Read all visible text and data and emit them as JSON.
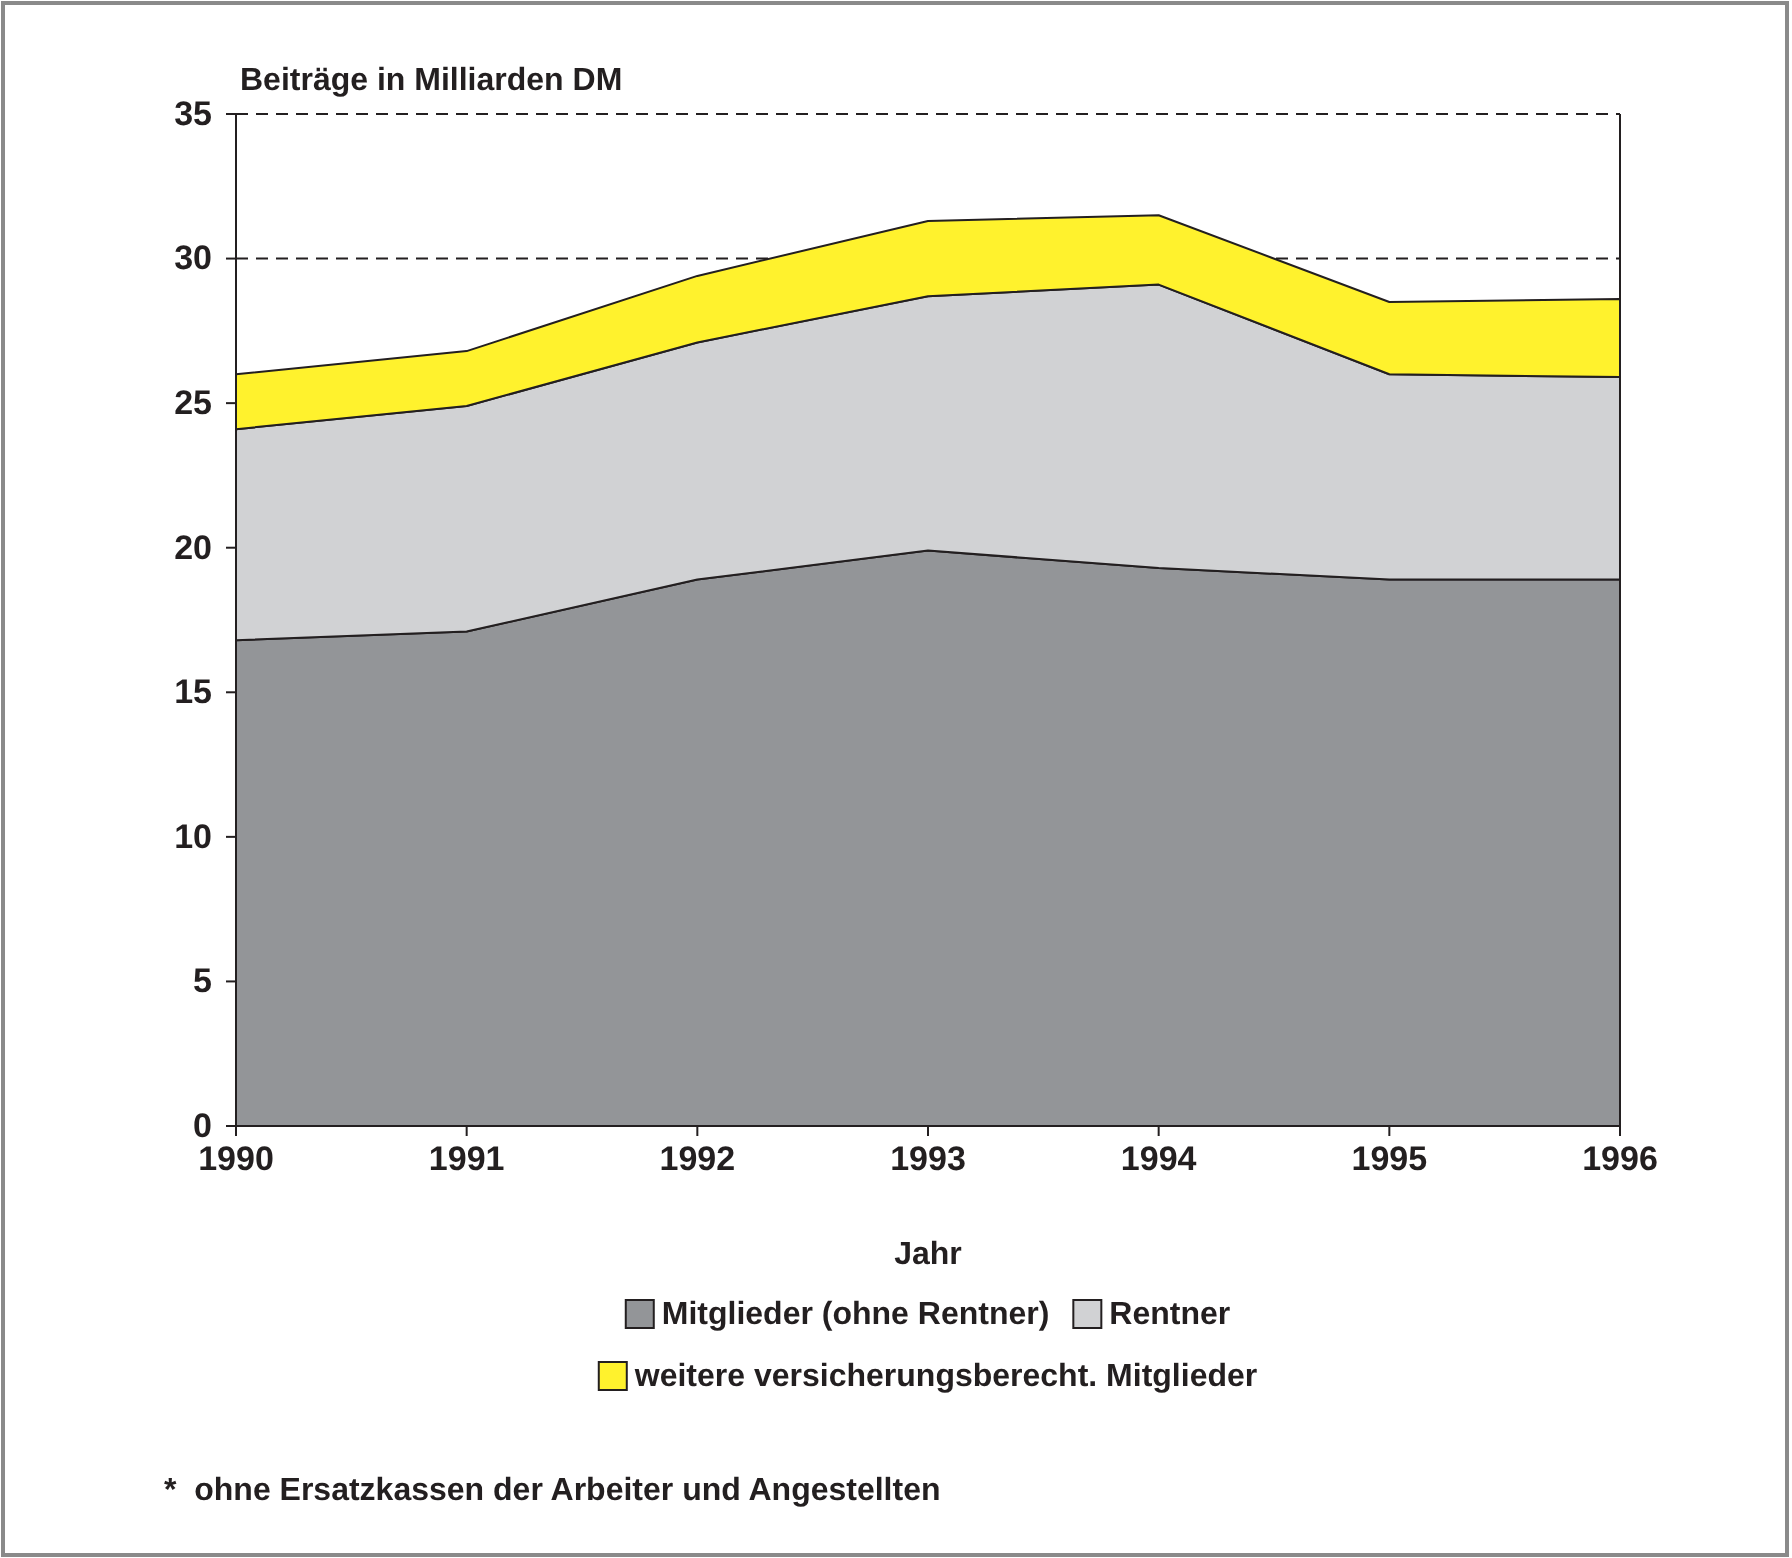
{
  "chart_data": {
    "type": "area",
    "stacked": true,
    "ylabel": "Beiträge in Milliarden DM",
    "xlabel": "Jahr",
    "x": [
      1990,
      1991,
      1992,
      1993,
      1994,
      1995,
      1996
    ],
    "series": [
      {
        "name": "Mitglieder (ohne Rentner)",
        "color": "#939598",
        "values": [
          16.8,
          17.1,
          18.9,
          19.9,
          19.3,
          18.9,
          18.9
        ]
      },
      {
        "name": "Rentner",
        "color": "#d1d2d4",
        "values": [
          7.3,
          7.8,
          8.2,
          8.8,
          9.8,
          7.1,
          7.0
        ]
      },
      {
        "name": "weitere versicherungsberecht. Mitglieder",
        "color": "#fff22d",
        "values": [
          1.9,
          1.9,
          2.3,
          2.6,
          2.4,
          2.5,
          2.7
        ]
      }
    ],
    "xlim": [
      1990,
      1996
    ],
    "xticks": [
      1990,
      1991,
      1992,
      1993,
      1994,
      1995,
      1996
    ],
    "ylim": [
      0,
      35
    ],
    "yticks": [
      0,
      5,
      10,
      15,
      20,
      25,
      30,
      35
    ],
    "grid": "y",
    "line_style": "solid",
    "legend": "bottom",
    "annotations": [
      "*  ohne Ersatzkassen der Arbeiter und Angestellten"
    ]
  }
}
